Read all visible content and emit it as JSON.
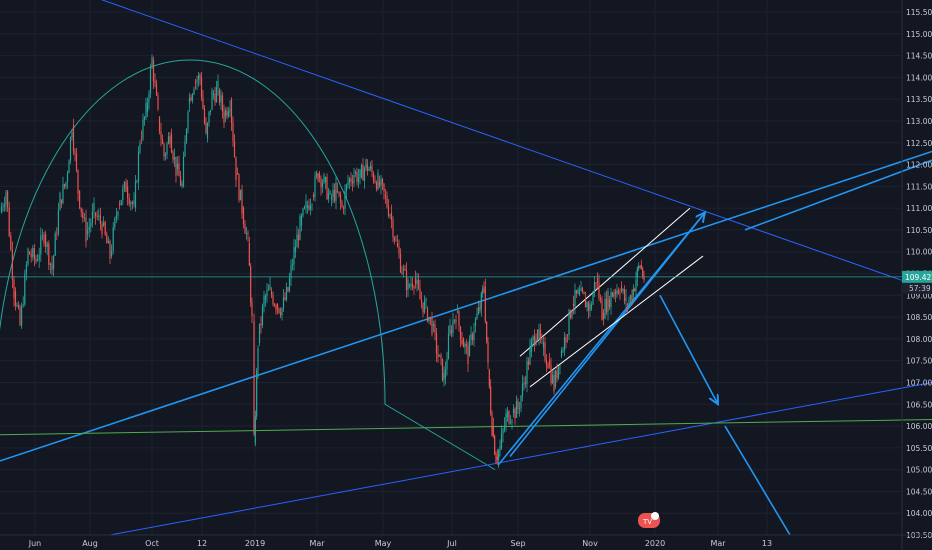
{
  "chart_data": {
    "type": "candlestick",
    "y_axis": {
      "min": 103.5,
      "max": 115.5,
      "ticks": [
        "115.500",
        "115.000",
        "114.500",
        "114.000",
        "113.500",
        "113.000",
        "112.500",
        "112.000",
        "111.500",
        "111.000",
        "110.500",
        "110.000",
        "109.500",
        "109.000",
        "108.500",
        "108.000",
        "107.500",
        "107.000",
        "106.500",
        "106.000",
        "105.500",
        "105.000",
        "104.500",
        "104.000",
        "103.500"
      ]
    },
    "x_axis": {
      "ticks": [
        "Jun",
        "Aug",
        "Oct",
        "12",
        "2019",
        "Mar",
        "May",
        "Jul",
        "Sep",
        "Nov",
        "2020",
        "Mar",
        "13"
      ]
    },
    "price_label": "109.422",
    "countdown_label": "57:39",
    "price_level": 109.422,
    "price_path": [
      [
        0,
        110.9
      ],
      [
        6,
        111.4
      ],
      [
        14,
        109.1
      ],
      [
        20,
        108.3
      ],
      [
        28,
        110.0
      ],
      [
        36,
        109.8
      ],
      [
        44,
        110.4
      ],
      [
        52,
        109.6
      ],
      [
        60,
        111.2
      ],
      [
        66,
        111.6
      ],
      [
        72,
        112.9
      ],
      [
        78,
        111.4
      ],
      [
        86,
        110.4
      ],
      [
        94,
        110.9
      ],
      [
        102,
        110.6
      ],
      [
        110,
        109.9
      ],
      [
        118,
        111.1
      ],
      [
        126,
        111.5
      ],
      [
        134,
        111.0
      ],
      [
        140,
        112.6
      ],
      [
        146,
        113.2
      ],
      [
        152,
        114.4
      ],
      [
        158,
        113.1
      ],
      [
        164,
        112.2
      ],
      [
        170,
        112.7
      ],
      [
        176,
        111.9
      ],
      [
        182,
        111.5
      ],
      [
        188,
        113.4
      ],
      [
        194,
        113.9
      ],
      [
        200,
        114.0
      ],
      [
        206,
        112.6
      ],
      [
        212,
        113.6
      ],
      [
        218,
        113.7
      ],
      [
        224,
        113.1
      ],
      [
        230,
        113.5
      ],
      [
        236,
        111.8
      ],
      [
        242,
        111.0
      ],
      [
        248,
        110.2
      ],
      [
        252,
        108.4
      ],
      [
        254,
        105.6
      ],
      [
        258,
        107.9
      ],
      [
        264,
        108.9
      ],
      [
        270,
        109.1
      ],
      [
        276,
        108.8
      ],
      [
        282,
        108.7
      ],
      [
        288,
        109.1
      ],
      [
        294,
        110.0
      ],
      [
        300,
        110.6
      ],
      [
        306,
        111.0
      ],
      [
        312,
        111.3
      ],
      [
        318,
        111.8
      ],
      [
        324,
        111.6
      ],
      [
        330,
        111.2
      ],
      [
        336,
        111.4
      ],
      [
        342,
        111.0
      ],
      [
        348,
        111.6
      ],
      [
        354,
        111.8
      ],
      [
        360,
        111.7
      ],
      [
        366,
        112.0
      ],
      [
        372,
        111.8
      ],
      [
        378,
        111.6
      ],
      [
        384,
        111.3
      ],
      [
        390,
        110.9
      ],
      [
        396,
        110.2
      ],
      [
        402,
        109.6
      ],
      [
        408,
        109.2
      ],
      [
        414,
        109.4
      ],
      [
        420,
        108.9
      ],
      [
        426,
        108.7
      ],
      [
        432,
        108.3
      ],
      [
        438,
        107.6
      ],
      [
        444,
        107.1
      ],
      [
        450,
        108.2
      ],
      [
        456,
        108.6
      ],
      [
        462,
        108.0
      ],
      [
        468,
        107.6
      ],
      [
        474,
        108.3
      ],
      [
        480,
        108.7
      ],
      [
        484,
        109.2
      ],
      [
        488,
        107.3
      ],
      [
        492,
        106.0
      ],
      [
        496,
        105.3
      ],
      [
        500,
        105.5
      ],
      [
        506,
        106.2
      ],
      [
        512,
        106.3
      ],
      [
        518,
        106.4
      ],
      [
        524,
        107.0
      ],
      [
        530,
        107.7
      ],
      [
        536,
        108.2
      ],
      [
        542,
        107.8
      ],
      [
        548,
        107.5
      ],
      [
        554,
        106.9
      ],
      [
        560,
        107.6
      ],
      [
        566,
        108.1
      ],
      [
        572,
        108.8
      ],
      [
        578,
        109.0
      ],
      [
        584,
        108.9
      ],
      [
        590,
        108.7
      ],
      [
        596,
        109.4
      ],
      [
        602,
        108.6
      ],
      [
        608,
        108.9
      ],
      [
        614,
        109.1
      ],
      [
        620,
        109.2
      ],
      [
        626,
        108.8
      ],
      [
        632,
        109.0
      ],
      [
        636,
        109.4
      ],
      [
        640,
        109.7
      ],
      [
        644,
        109.4
      ]
    ],
    "drawings": [
      {
        "kind": "line",
        "color": "#2962ff",
        "from": [
          0,
          116.6
        ],
        "to": [
          932,
          109.1
        ]
      },
      {
        "kind": "line",
        "color": "#2196f3",
        "from": [
          0,
          105.2
        ],
        "to": [
          932,
          112.3
        ]
      },
      {
        "kind": "line",
        "color": "#2962ff",
        "from": [
          110,
          103.5
        ],
        "to": [
          932,
          107.0
        ]
      },
      {
        "kind": "line",
        "color": "#4caf50",
        "from": [
          0,
          105.8
        ],
        "to": [
          932,
          106.15
        ]
      },
      {
        "kind": "line",
        "color": "#2196f3",
        "from": [
          498,
          105.1
        ],
        "to": [
          705,
          110.9
        ]
      },
      {
        "kind": "arrow",
        "color": "#2196f3",
        "from": [
          660,
          109.0
        ],
        "to": [
          718,
          106.5
        ]
      },
      {
        "kind": "arrow",
        "color": "#2196f3",
        "from": [
          510,
          105.3
        ],
        "to": [
          705,
          110.9
        ]
      },
      {
        "kind": "line",
        "color": "#2196f3",
        "from": [
          725,
          106.0
        ],
        "to": [
          790,
          103.5
        ]
      },
      {
        "kind": "line",
        "color": "#2196f3",
        "from": [
          745,
          110.5
        ],
        "to": [
          932,
          112.1
        ]
      },
      {
        "kind": "line",
        "color": "#ffffff",
        "from": [
          520,
          107.6
        ],
        "to": [
          690,
          111.0
        ]
      },
      {
        "kind": "line",
        "color": "#ffffff",
        "from": [
          530,
          106.9
        ],
        "to": [
          703,
          109.9
        ]
      }
    ],
    "arc": {
      "color": "#26a69a",
      "center": [
        190,
        106.5
      ],
      "rx": 195,
      "ry_units": 7.9
    }
  },
  "ui": {
    "logo_text": "TV"
  }
}
